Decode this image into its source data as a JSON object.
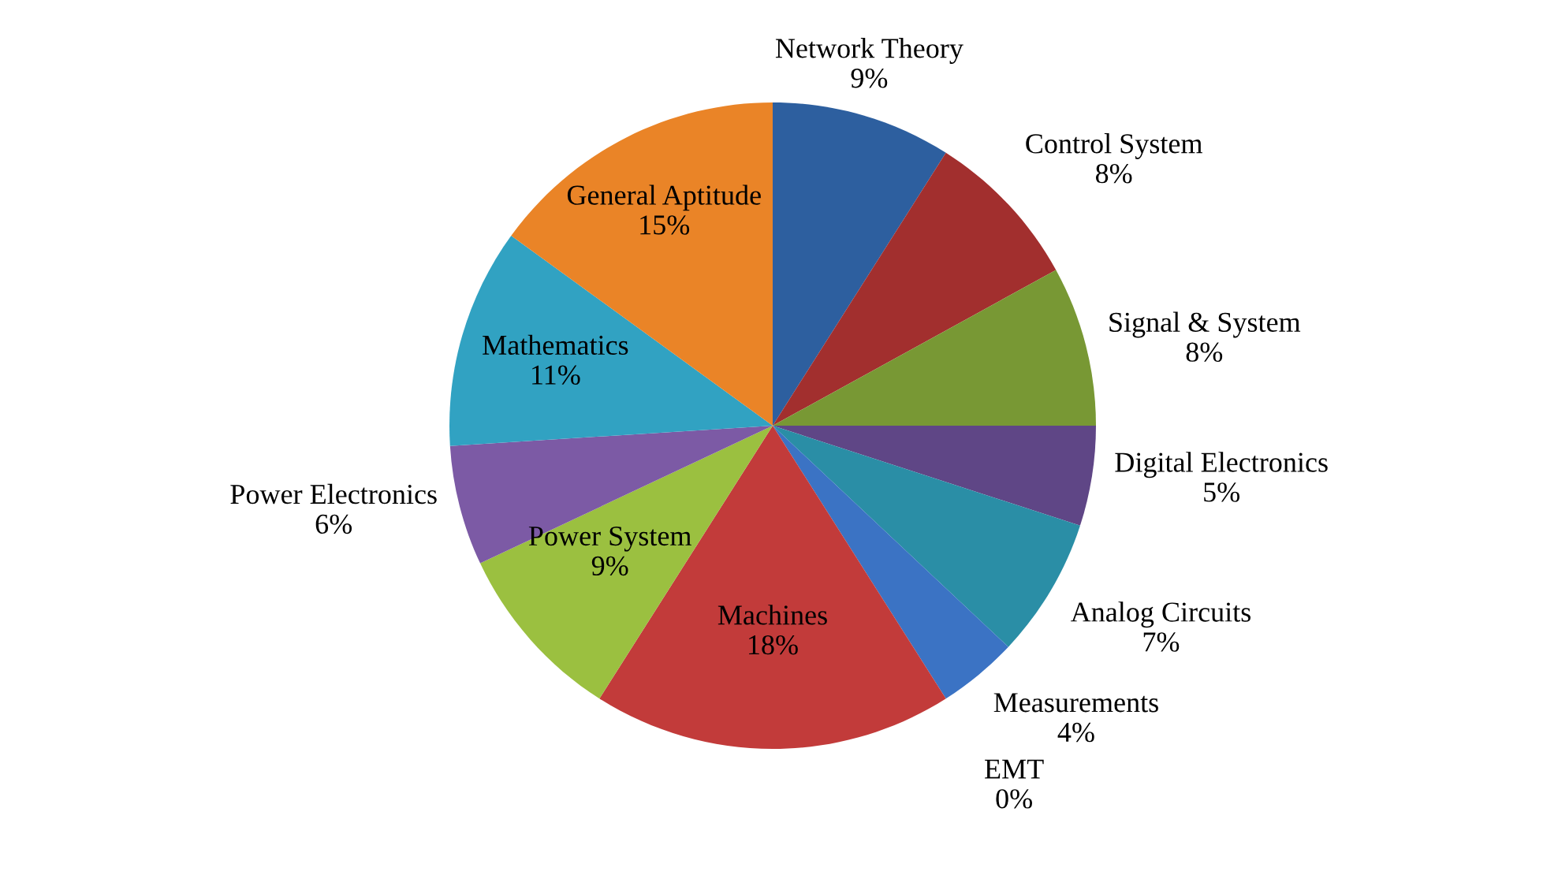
{
  "chart_data": {
    "type": "pie",
    "categories": [
      "Network Theory",
      "Control System",
      "Signal & System",
      "Digital Electronics",
      "Analog Circuits",
      "Measurements",
      "EMT",
      "Machines",
      "Power System",
      "Power Electronics",
      "Mathematics",
      "General Aptitude"
    ],
    "values": [
      9,
      8,
      8,
      5,
      7,
      4,
      0,
      18,
      9,
      6,
      11,
      15
    ],
    "value_labels": [
      "9%",
      "8%",
      "8%",
      "5%",
      "7%",
      "4%",
      "0%",
      "18%",
      "9%",
      "6%",
      "11%",
      "15%"
    ],
    "colors": [
      "#2d5f9f",
      "#a22f2e",
      "#789834",
      "#5f4686",
      "#2a8ea6",
      "#3b73c4",
      null,
      "#c23b3a",
      "#9bc040",
      "#7c5aa5",
      "#31a2c2",
      "#ea8427"
    ]
  }
}
